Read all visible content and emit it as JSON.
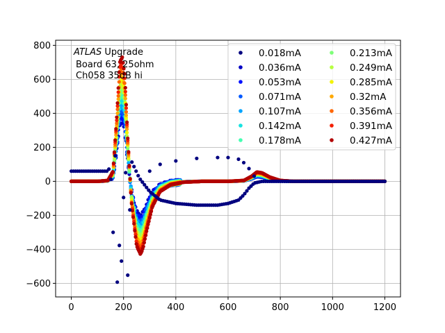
{
  "chart_data": {
    "type": "scatter",
    "title": "",
    "xlabel": "",
    "ylabel": "",
    "xlim": [
      -60,
      1260
    ],
    "ylim": [
      -680,
      830
    ],
    "xticks": [
      0,
      200,
      400,
      600,
      800,
      1000,
      1200
    ],
    "yticks": [
      -600,
      -400,
      -200,
      0,
      200,
      400,
      600,
      800
    ],
    "xtick_labels": [
      "0",
      "200",
      "400",
      "600",
      "800",
      "1000",
      "1200"
    ],
    "ytick_labels": [
      "−600",
      "−400",
      "−200",
      "0",
      "200",
      "400",
      "600",
      "800"
    ],
    "grid": true,
    "legend_position": "top-right",
    "legend_columns": 2,
    "annotation": {
      "line1_italic": "ATLAS",
      "line1_rest": " Upgrade",
      "line2": "Board 63, 25ohm",
      "line3": "Ch058 35dB hi"
    },
    "series": [
      {
        "name": "0.018mA",
        "color": "#00007f"
      },
      {
        "name": "0.036mA",
        "color": "#0000c4"
      },
      {
        "name": "0.053mA",
        "color": "#0010ff"
      },
      {
        "name": "0.071mA",
        "color": "#0058ff"
      },
      {
        "name": "0.107mA",
        "color": "#00a4ff"
      },
      {
        "name": "0.142mA",
        "color": "#16e2e0"
      },
      {
        "name": "0.178mA",
        "color": "#44ffb2"
      },
      {
        "name": "0.213mA",
        "color": "#7eff79"
      },
      {
        "name": "0.249mA",
        "color": "#b6ff41"
      },
      {
        "name": "0.285mA",
        "color": "#f3f300"
      },
      {
        "name": "0.32mA",
        "color": "#ffa800"
      },
      {
        "name": "0.356mA",
        "color": "#ff6600"
      },
      {
        "name": "0.391mA",
        "color": "#f41e00"
      },
      {
        "name": "0.427mA",
        "color": "#b20000"
      }
    ],
    "shape": {
      "description": "pulse shape vs time sample; each series is a scaled copy of a bipolar pulse",
      "points_x": [
        0,
        100,
        140,
        160,
        175,
        185,
        195,
        205,
        215,
        230,
        250,
        265,
        275,
        290,
        310,
        340,
        380,
        430,
        500,
        600,
        660,
        690,
        710,
        730,
        760,
        800,
        850,
        1000,
        1200
      ],
      "points_y_fullscale": [
        0,
        0,
        5,
        60,
        400,
        700,
        730,
        620,
        280,
        -120,
        -380,
        -430,
        -390,
        -280,
        -150,
        -60,
        -20,
        -5,
        0,
        0,
        5,
        30,
        55,
        50,
        25,
        5,
        0,
        0,
        0
      ]
    },
    "low_current_outlier": {
      "description": "0.018mA series shows an inverted/oscillating pattern",
      "points_x": [
        140,
        150,
        160,
        165,
        175,
        185,
        195,
        205,
        215,
        230,
        260,
        300,
        340,
        400,
        480,
        560,
        600,
        640,
        660,
        680,
        700,
        730,
        760,
        800,
        850,
        1000,
        1200
      ],
      "points_y": [
        60,
        90,
        -300,
        480,
        -620,
        -350,
        -520,
        330,
        -600,
        120,
        20,
        -60,
        -110,
        -130,
        -140,
        -140,
        -130,
        -110,
        -80,
        -40,
        -10,
        0,
        0,
        0,
        0,
        0,
        0
      ],
      "upper_arc_x": [
        300,
        340,
        400,
        480,
        560,
        600,
        640,
        660,
        680,
        700
      ],
      "upper_arc_y": [
        60,
        100,
        120,
        135,
        140,
        140,
        130,
        110,
        75,
        30
      ]
    }
  }
}
